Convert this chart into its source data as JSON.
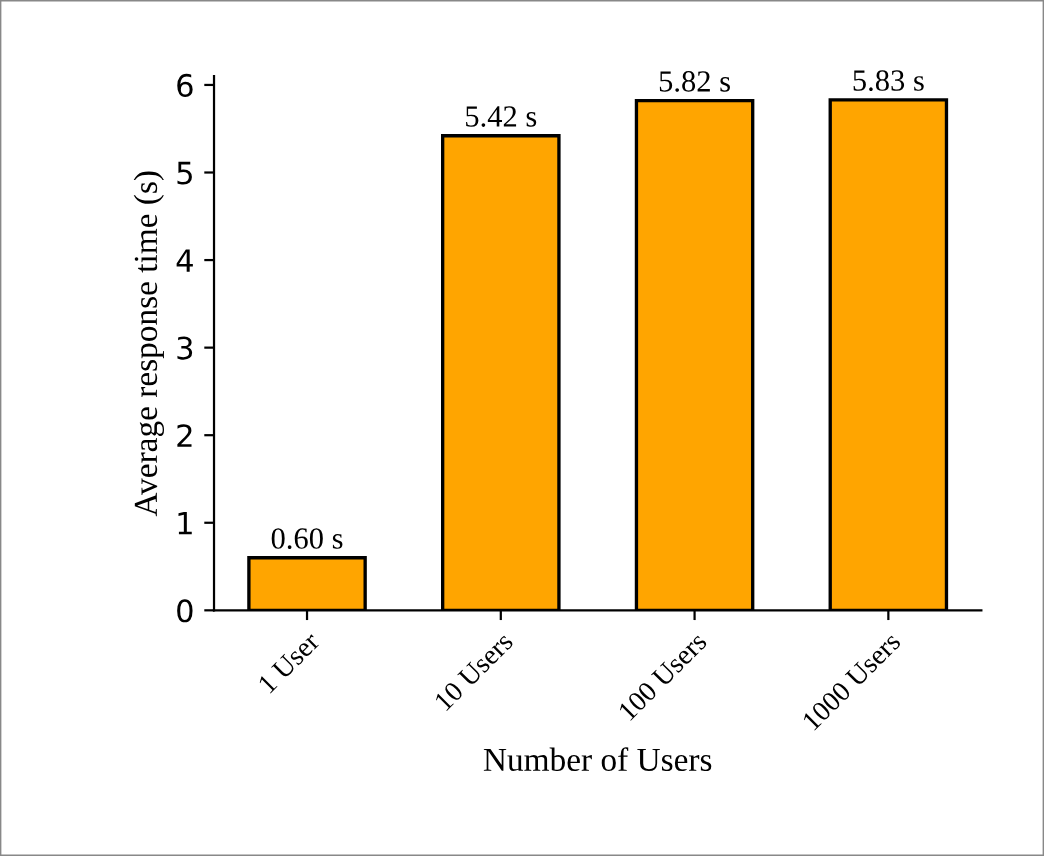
{
  "chart_data": {
    "type": "bar",
    "categories": [
      "1 User",
      "10 Users",
      "100 Users",
      "1000 Users"
    ],
    "values": [
      0.6,
      5.42,
      5.82,
      5.83
    ],
    "value_labels": [
      "0.60 s",
      "5.42 s",
      "5.82 s",
      "5.83 s"
    ],
    "color": "#ffa500",
    "xlabel": "Number of Users",
    "ylabel": "Average response time (s)",
    "ylim": [
      0,
      6.1
    ],
    "yticks": [
      0,
      1,
      2,
      3,
      4,
      5,
      6
    ],
    "grid": false
  }
}
